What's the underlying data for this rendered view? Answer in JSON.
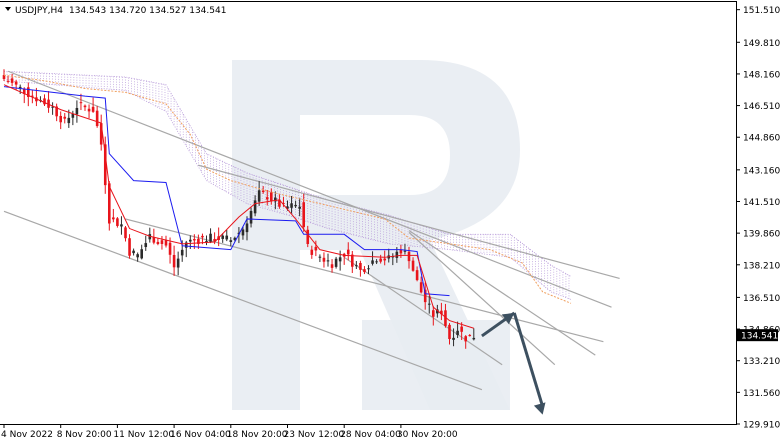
{
  "header": {
    "symbol": "USDJPY,H4",
    "ohlc": "134.543 134.720 134.527 134.541"
  },
  "colors": {
    "bull": "#2b2b2b",
    "bear": "#e8141b",
    "tenkan": "#e8141b",
    "kijun": "#1c1cf0",
    "cloud": "#b79ad9",
    "chikou": "#f0a060",
    "trend": "#a8a8a8",
    "arrow": "#3d5060",
    "price_label_bg": "#000000",
    "watermark": "#e8ecf2"
  },
  "chart_data": {
    "type": "candlestick",
    "yaxis": {
      "min": 129.91,
      "max": 151.91,
      "ticks": [
        "151.510",
        "149.810",
        "148.160",
        "146.510",
        "144.860",
        "143.160",
        "141.510",
        "139.860",
        "138.210",
        "136.510",
        "134.860",
        "133.210",
        "131.560",
        "129.910"
      ],
      "tick_values": [
        151.51,
        149.81,
        148.16,
        146.51,
        144.86,
        143.16,
        141.51,
        139.86,
        138.21,
        136.51,
        134.86,
        133.21,
        131.56,
        129.91
      ]
    },
    "xaxis": {
      "bars": 120,
      "labels": [
        {
          "text": "4 Nov 2022",
          "bar": 0
        },
        {
          "text": "8 Nov 20:00",
          "bar": 14
        },
        {
          "text": "11 Nov 12:00",
          "bar": 28
        },
        {
          "text": "16 Nov 04:00",
          "bar": 42
        },
        {
          "text": "18 Nov 20:00",
          "bar": 56
        },
        {
          "text": "23 Nov 12:00",
          "bar": 70
        },
        {
          "text": "28 Nov 04:00",
          "bar": 84
        },
        {
          "text": "30 Nov 20:00",
          "bar": 98
        }
      ]
    },
    "current_price": "134.541",
    "current_value": 134.541,
    "close_series": [
      {
        "bar": 0,
        "v": 147.9
      },
      {
        "bar": 4,
        "v": 147.4
      },
      {
        "bar": 8,
        "v": 146.9
      },
      {
        "bar": 12,
        "v": 146.4
      },
      {
        "bar": 15,
        "v": 145.6
      },
      {
        "bar": 18,
        "v": 146.5
      },
      {
        "bar": 22,
        "v": 146.3
      },
      {
        "bar": 24,
        "v": 144.5
      },
      {
        "bar": 26,
        "v": 140.6
      },
      {
        "bar": 29,
        "v": 140.3
      },
      {
        "bar": 31,
        "v": 138.9
      },
      {
        "bar": 33,
        "v": 138.7
      },
      {
        "bar": 36,
        "v": 139.7
      },
      {
        "bar": 40,
        "v": 139.2
      },
      {
        "bar": 42,
        "v": 138.1
      },
      {
        "bar": 45,
        "v": 139.4
      },
      {
        "bar": 50,
        "v": 139.6
      },
      {
        "bar": 53,
        "v": 139.6
      },
      {
        "bar": 56,
        "v": 139.5
      },
      {
        "bar": 59,
        "v": 140.1
      },
      {
        "bar": 63,
        "v": 141.9
      },
      {
        "bar": 65,
        "v": 141.8
      },
      {
        "bar": 69,
        "v": 141.2
      },
      {
        "bar": 73,
        "v": 141.3
      },
      {
        "bar": 75,
        "v": 139.1
      },
      {
        "bar": 79,
        "v": 138.5
      },
      {
        "bar": 81,
        "v": 138.3
      },
      {
        "bar": 84,
        "v": 138.8
      },
      {
        "bar": 88,
        "v": 137.9
      },
      {
        "bar": 92,
        "v": 138.6
      },
      {
        "bar": 95,
        "v": 138.5
      },
      {
        "bar": 98,
        "v": 139.0
      },
      {
        "bar": 100,
        "v": 138.6
      },
      {
        "bar": 102,
        "v": 137.3
      },
      {
        "bar": 104,
        "v": 136.3
      },
      {
        "bar": 106,
        "v": 135.6
      },
      {
        "bar": 108,
        "v": 135.8
      },
      {
        "bar": 110,
        "v": 134.4
      },
      {
        "bar": 112,
        "v": 134.9
      },
      {
        "bar": 114,
        "v": 134.4
      },
      {
        "bar": 116,
        "v": 134.5
      }
    ],
    "tenkan_sen": [
      {
        "bar": 0,
        "v": 147.6
      },
      {
        "bar": 14,
        "v": 146.3
      },
      {
        "bar": 24,
        "v": 145.6
      },
      {
        "bar": 26,
        "v": 142.3
      },
      {
        "bar": 31,
        "v": 140.1
      },
      {
        "bar": 36,
        "v": 139.7
      },
      {
        "bar": 44,
        "v": 139.3
      },
      {
        "bar": 52,
        "v": 139.4
      },
      {
        "bar": 58,
        "v": 140.7
      },
      {
        "bar": 62,
        "v": 141.4
      },
      {
        "bar": 68,
        "v": 141.6
      },
      {
        "bar": 72,
        "v": 140.6
      },
      {
        "bar": 78,
        "v": 139.0
      },
      {
        "bar": 84,
        "v": 138.7
      },
      {
        "bar": 94,
        "v": 138.6
      },
      {
        "bar": 98,
        "v": 138.7
      },
      {
        "bar": 102,
        "v": 138.7
      },
      {
        "bar": 106,
        "v": 136.0
      },
      {
        "bar": 110,
        "v": 135.3
      },
      {
        "bar": 116,
        "v": 134.9
      }
    ],
    "kijun_sen": [
      {
        "bar": 0,
        "v": 147.5
      },
      {
        "bar": 20,
        "v": 147.0
      },
      {
        "bar": 25,
        "v": 146.9
      },
      {
        "bar": 26,
        "v": 144.0
      },
      {
        "bar": 32,
        "v": 142.6
      },
      {
        "bar": 40,
        "v": 142.5
      },
      {
        "bar": 44,
        "v": 139.2
      },
      {
        "bar": 56,
        "v": 139.0
      },
      {
        "bar": 60,
        "v": 140.6
      },
      {
        "bar": 72,
        "v": 140.5
      },
      {
        "bar": 74,
        "v": 139.8
      },
      {
        "bar": 84,
        "v": 139.8
      },
      {
        "bar": 89,
        "v": 139.0
      },
      {
        "bar": 98,
        "v": 139.0
      },
      {
        "bar": 102,
        "v": 138.9
      },
      {
        "bar": 104,
        "v": 136.7
      },
      {
        "bar": 110,
        "v": 136.6
      }
    ],
    "chikou_span": [
      {
        "bar": 0,
        "v": 148.1
      },
      {
        "bar": 10,
        "v": 147.8
      },
      {
        "bar": 20,
        "v": 147.4
      },
      {
        "bar": 30,
        "v": 147.2
      },
      {
        "bar": 40,
        "v": 146.6
      },
      {
        "bar": 46,
        "v": 145.0
      },
      {
        "bar": 50,
        "v": 143.2
      },
      {
        "bar": 56,
        "v": 142.6
      },
      {
        "bar": 66,
        "v": 142.0
      },
      {
        "bar": 76,
        "v": 141.5
      },
      {
        "bar": 86,
        "v": 141.0
      },
      {
        "bar": 94,
        "v": 140.6
      },
      {
        "bar": 100,
        "v": 139.6
      },
      {
        "bar": 110,
        "v": 139.3
      },
      {
        "bar": 120,
        "v": 139.0
      },
      {
        "bar": 128,
        "v": 138.3
      },
      {
        "bar": 133,
        "v": 136.8
      },
      {
        "bar": 140,
        "v": 136.2
      }
    ],
    "cloud_top": [
      {
        "bar": 0,
        "v": 148.3
      },
      {
        "bar": 30,
        "v": 148.0
      },
      {
        "bar": 40,
        "v": 147.6
      },
      {
        "bar": 50,
        "v": 144.0
      },
      {
        "bar": 60,
        "v": 143.0
      },
      {
        "bar": 70,
        "v": 142.3
      },
      {
        "bar": 80,
        "v": 141.6
      },
      {
        "bar": 95,
        "v": 140.8
      },
      {
        "bar": 110,
        "v": 139.8
      },
      {
        "bar": 125,
        "v": 139.8
      },
      {
        "bar": 135,
        "v": 138.2
      },
      {
        "bar": 140,
        "v": 137.6
      }
    ],
    "cloud_bottom": [
      {
        "bar": 0,
        "v": 147.8
      },
      {
        "bar": 30,
        "v": 147.3
      },
      {
        "bar": 40,
        "v": 146.2
      },
      {
        "bar": 50,
        "v": 142.6
      },
      {
        "bar": 60,
        "v": 141.4
      },
      {
        "bar": 70,
        "v": 140.8
      },
      {
        "bar": 80,
        "v": 140.1
      },
      {
        "bar": 95,
        "v": 139.3
      },
      {
        "bar": 110,
        "v": 139.0
      },
      {
        "bar": 125,
        "v": 138.6
      },
      {
        "bar": 135,
        "v": 136.8
      },
      {
        "bar": 140,
        "v": 136.4
      }
    ],
    "trendlines": [
      {
        "from": {
          "bar": 1,
          "v": 148.3
        },
        "to": {
          "bar": 150,
          "v": 136.0
        }
      },
      {
        "from": {
          "bar": 48,
          "v": 143.4
        },
        "to": {
          "bar": 152,
          "v": 137.5
        }
      },
      {
        "from": {
          "bar": 0,
          "v": 141.0
        },
        "to": {
          "bar": 118,
          "v": 131.7
        }
      },
      {
        "from": {
          "bar": 30,
          "v": 140.6
        },
        "to": {
          "bar": 148,
          "v": 134.2
        }
      },
      {
        "from": {
          "bar": 100,
          "v": 140.0
        },
        "to": {
          "bar": 146,
          "v": 133.5
        }
      },
      {
        "from": {
          "bar": 100,
          "v": 139.9
        },
        "to": {
          "bar": 136,
          "v": 133.0
        }
      },
      {
        "from": {
          "bar": 84,
          "v": 138.6
        },
        "to": {
          "bar": 123,
          "v": 133.0
        }
      }
    ],
    "forecast_arrow": [
      {
        "bar": 118,
        "v": 134.5
      },
      {
        "bar": 126,
        "v": 135.7
      },
      {
        "bar": 133,
        "v": 130.4
      }
    ]
  }
}
